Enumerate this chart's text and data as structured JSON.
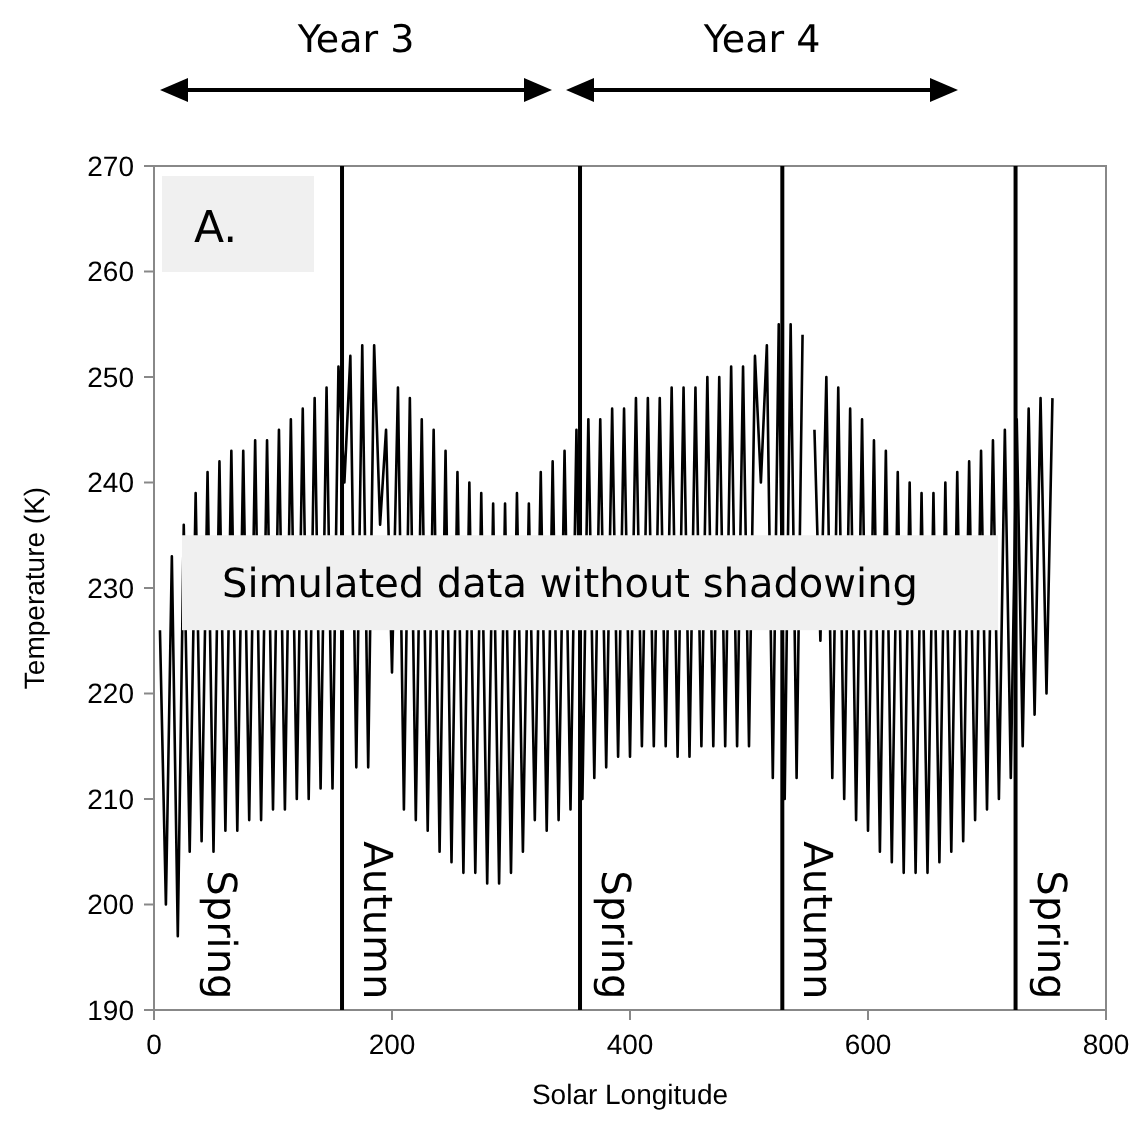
{
  "chart_data": {
    "type": "line",
    "xlabel": "Solar Longitude",
    "ylabel": "Temperature (K)",
    "xlim": [
      0,
      800
    ],
    "xticks": [
      0,
      200,
      400,
      600,
      800
    ],
    "ylim": [
      190,
      270
    ],
    "yticks": [
      190,
      200,
      210,
      220,
      230,
      240,
      250,
      260,
      270
    ],
    "grid": false,
    "x": [
      5,
      10,
      15,
      20,
      25,
      30,
      35,
      40,
      45,
      50,
      55,
      60,
      65,
      70,
      75,
      80,
      85,
      90,
      95,
      100,
      105,
      110,
      115,
      120,
      125,
      130,
      135,
      140,
      145,
      150,
      155,
      160,
      165,
      170,
      175,
      180,
      185,
      190,
      195,
      200,
      205,
      210,
      215,
      220,
      225,
      230,
      235,
      240,
      245,
      250,
      255,
      260,
      265,
      270,
      275,
      280,
      285,
      290,
      295,
      300,
      305,
      310,
      315,
      320,
      325,
      330,
      335,
      340,
      345,
      350,
      355,
      360,
      365,
      370,
      375,
      380,
      385,
      390,
      395,
      400,
      405,
      410,
      415,
      420,
      425,
      430,
      435,
      440,
      445,
      450,
      455,
      460,
      465,
      470,
      475,
      480,
      485,
      490,
      495,
      500,
      505,
      510,
      515,
      520,
      525,
      530,
      535,
      540,
      545,
      550,
      555,
      560,
      565,
      570,
      575,
      580,
      585,
      590,
      595,
      600,
      605,
      610,
      615,
      620,
      625,
      630,
      635,
      640,
      645,
      650,
      655,
      660,
      665,
      670,
      675,
      680,
      685,
      690,
      695,
      700,
      705,
      710,
      715,
      720,
      725,
      730,
      735,
      740,
      745,
      750,
      755
    ],
    "series": [
      {
        "color": "#000000",
        "values": [
          226,
          200,
          233,
          197,
          236,
          205,
          239,
          206,
          241,
          205,
          242,
          207,
          243,
          207,
          243,
          208,
          244,
          208,
          244,
          209,
          245,
          209,
          246,
          210,
          247,
          210,
          248,
          211,
          249,
          211,
          251,
          240,
          252,
          213,
          253,
          213,
          253,
          236,
          245,
          222,
          249,
          209,
          248,
          208,
          246,
          207,
          245,
          205,
          243,
          204,
          241,
          203,
          240,
          203,
          239,
          202,
          238,
          202,
          238,
          203,
          239,
          205,
          238,
          208,
          241,
          207,
          242,
          208,
          243,
          209,
          245,
          210,
          246,
          212,
          246,
          213,
          247,
          214,
          247,
          214,
          248,
          215,
          248,
          215,
          248,
          215,
          249,
          214,
          249,
          214,
          249,
          215,
          250,
          215,
          250,
          215,
          251,
          215,
          251,
          215,
          252,
          240,
          253,
          212,
          255,
          210,
          255,
          212,
          254,
          null,
          245,
          225,
          250,
          212,
          249,
          210,
          247,
          208,
          246,
          207,
          244,
          205,
          243,
          204,
          241,
          203,
          240,
          203,
          239,
          203,
          239,
          204,
          240,
          205,
          241,
          206,
          242,
          208,
          243,
          209,
          244,
          210,
          245,
          212,
          246,
          215,
          247,
          218,
          248,
          220,
          248
        ]
      }
    ],
    "ref_lines": [
      {
        "axis": "x",
        "value": 158,
        "label": "Autumn",
        "color": "#000000"
      },
      {
        "axis": "x",
        "value": 358,
        "label": "Spring",
        "color": "#000000"
      },
      {
        "axis": "x",
        "value": 528,
        "label": "Autumn",
        "color": "#000000"
      },
      {
        "axis": "x",
        "value": 724,
        "label": "Spring",
        "color": "#000000"
      }
    ],
    "annotations": [
      "Spring",
      "A.",
      "Simulated data without shadowing",
      "Year 3",
      "Year 4"
    ]
  }
}
